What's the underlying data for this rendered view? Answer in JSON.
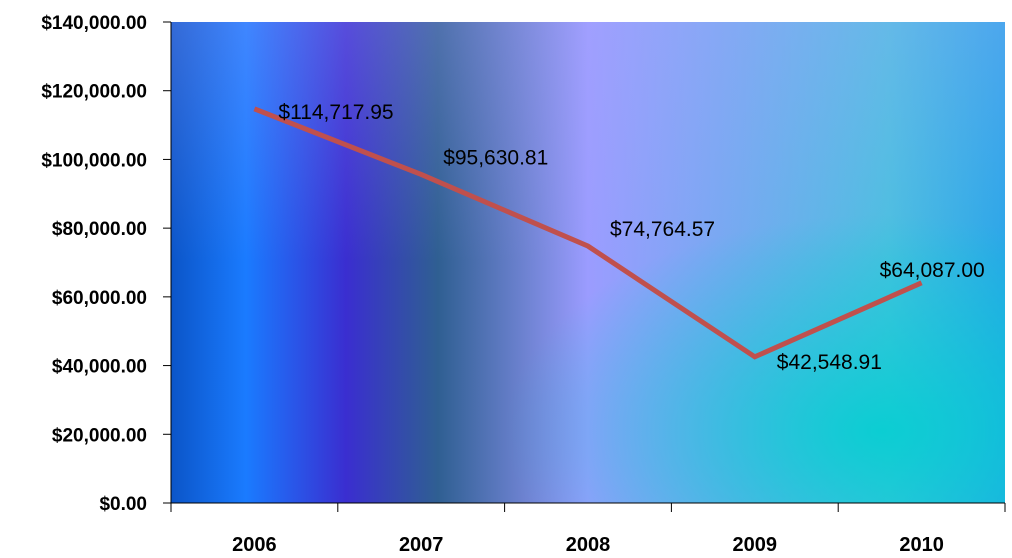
{
  "chart_data": {
    "type": "line",
    "title": "",
    "xlabel": "",
    "ylabel": "",
    "categories": [
      "2006",
      "2007",
      "2008",
      "2009",
      "2010"
    ],
    "series": [
      {
        "values": [
          114717.95,
          95630.81,
          74764.57,
          42548.91,
          64087.0
        ],
        "labels": [
          "$114,717.95",
          "$95,630.81",
          "$74,764.57",
          "$42,548.91",
          "$64,087.00"
        ],
        "color": "#c0504d"
      }
    ],
    "ylim": [
      0,
      140000
    ],
    "y_ticks": [
      0,
      20000,
      40000,
      60000,
      80000,
      100000,
      120000,
      140000
    ],
    "y_tick_labels": [
      "$0.00",
      "$20,000.00",
      "$40,000.00",
      "$60,000.00",
      "$80,000.00",
      "$100,000.00",
      "$120,000.00",
      "$140,000.00"
    ],
    "grid": false,
    "legend": "none"
  }
}
